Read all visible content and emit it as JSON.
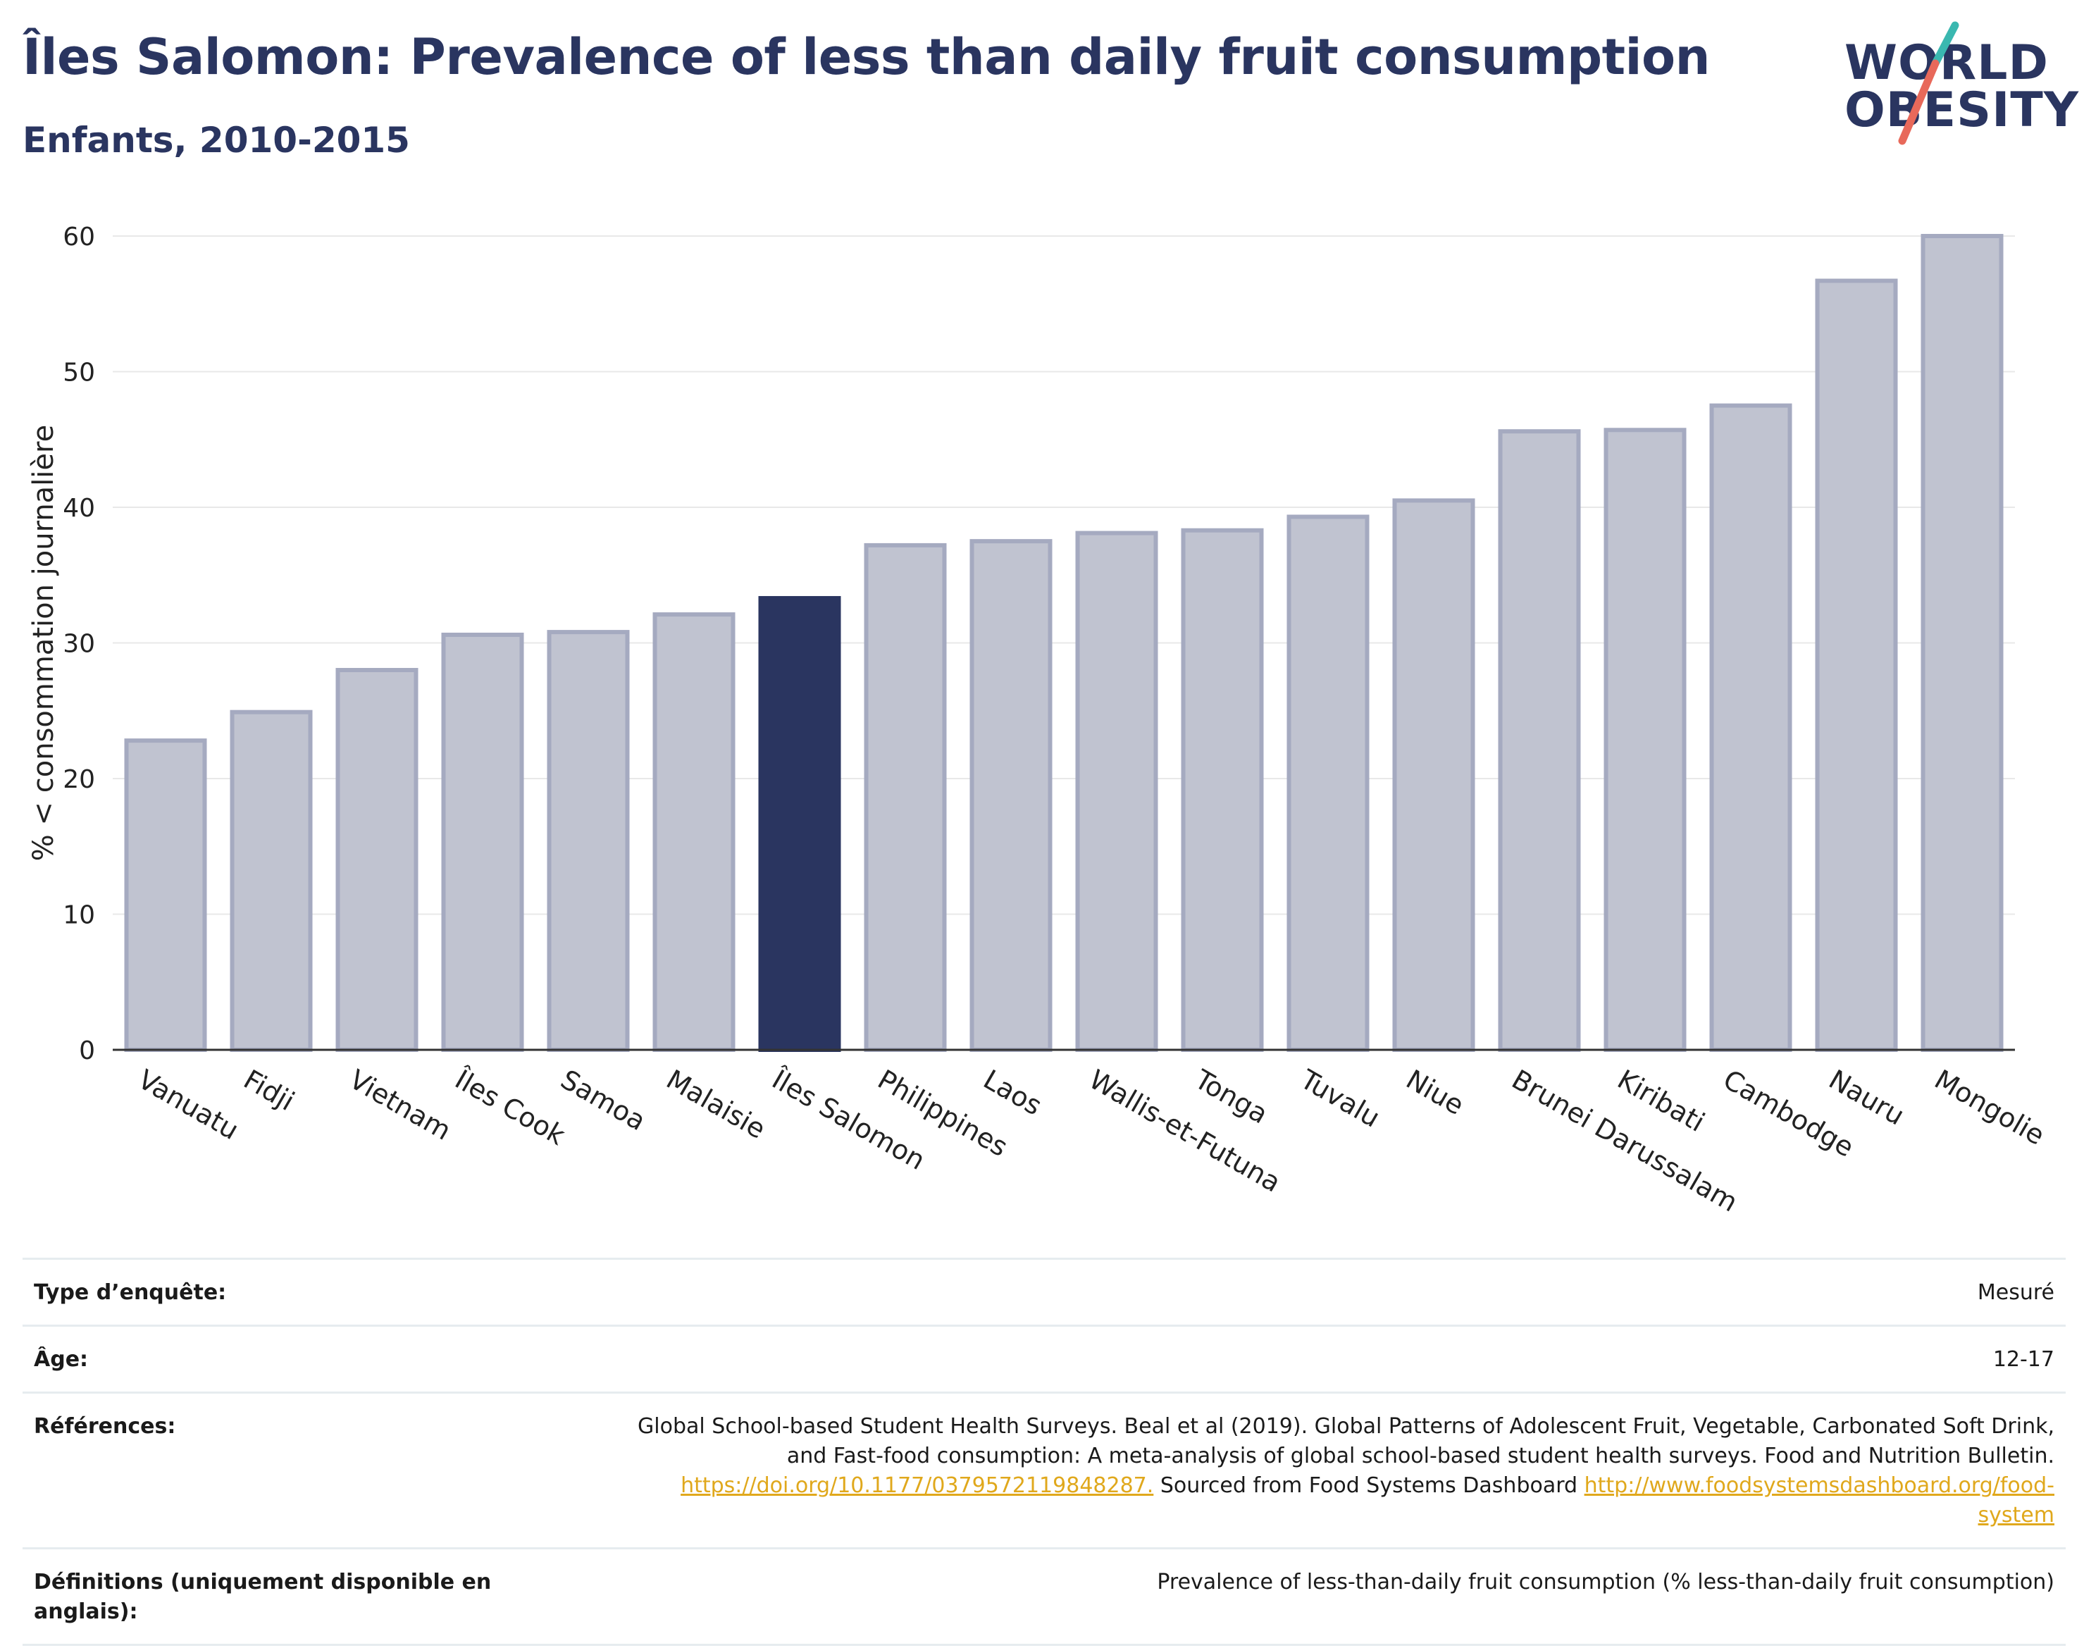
{
  "header": {
    "title": "Îles Salomon: Prevalence of less than daily fruit consumption",
    "subtitle": "Enfants, 2010-2015"
  },
  "logo": {
    "line1": "WORLD",
    "line2": "OBESITY",
    "colors": {
      "text": "#2a3560",
      "slash_top": "#3ab8b0",
      "slash_bottom": "#e8695a"
    }
  },
  "chart_data": {
    "type": "bar",
    "title": "Îles Salomon: Prevalence of less than daily fruit consumption",
    "subtitle": "Enfants, 2010-2015",
    "xlabel": "",
    "ylabel": "% < consommation journalière",
    "ylim": [
      0,
      60
    ],
    "yticks": [
      0,
      10,
      20,
      30,
      40,
      50,
      60
    ],
    "grid": true,
    "highlight": "Îles Salomon",
    "colors": {
      "bar": "#c0c3d0",
      "bar_edge": "#a5aac0",
      "highlight": "#2a3560",
      "grid": "#e8e8e8"
    },
    "categories": [
      "Vanuatu",
      "Fidji",
      "Vietnam",
      "Îles Cook",
      "Samoa",
      "Malaisie",
      "Îles Salomon",
      "Philippines",
      "Laos",
      "Wallis-et-Futuna",
      "Tonga",
      "Tuvalu",
      "Niue",
      "Brunei Darussalam",
      "Kiribati",
      "Cambodge",
      "Nauru",
      "Mongolie"
    ],
    "values": [
      22.8,
      24.9,
      28.0,
      30.6,
      30.8,
      32.1,
      33.3,
      37.2,
      37.5,
      38.1,
      38.3,
      39.3,
      40.5,
      45.6,
      45.7,
      47.5,
      56.7,
      60.0
    ]
  },
  "metadata": {
    "rows": [
      {
        "label": "Type d’enquête:",
        "value": "Mesuré"
      },
      {
        "label": "Âge:",
        "value": "12-17"
      },
      {
        "label": "Références:",
        "value_line1": "Global School-based Student Health Surveys. Beal et al (2019). Global Patterns of Adolescent Fruit, Vegetable, Carbonated Soft Drink,",
        "value_line2": "and Fast-food consumption: A meta-analysis of global school-based student health surveys. Food and Nutrition Bulletin.",
        "link1": "https://doi.org/10.1177/0379572119848287.",
        "mid_text": " Sourced from Food Systems Dashboard ",
        "link2a": "http://www.foodsystemsdashboard.org/food-",
        "link2b": "system"
      },
      {
        "label": "Définitions (uniquement disponible en anglais):",
        "value": "Prevalence of less-than-daily fruit consumption (% less-than-daily fruit consumption)"
      }
    ]
  }
}
